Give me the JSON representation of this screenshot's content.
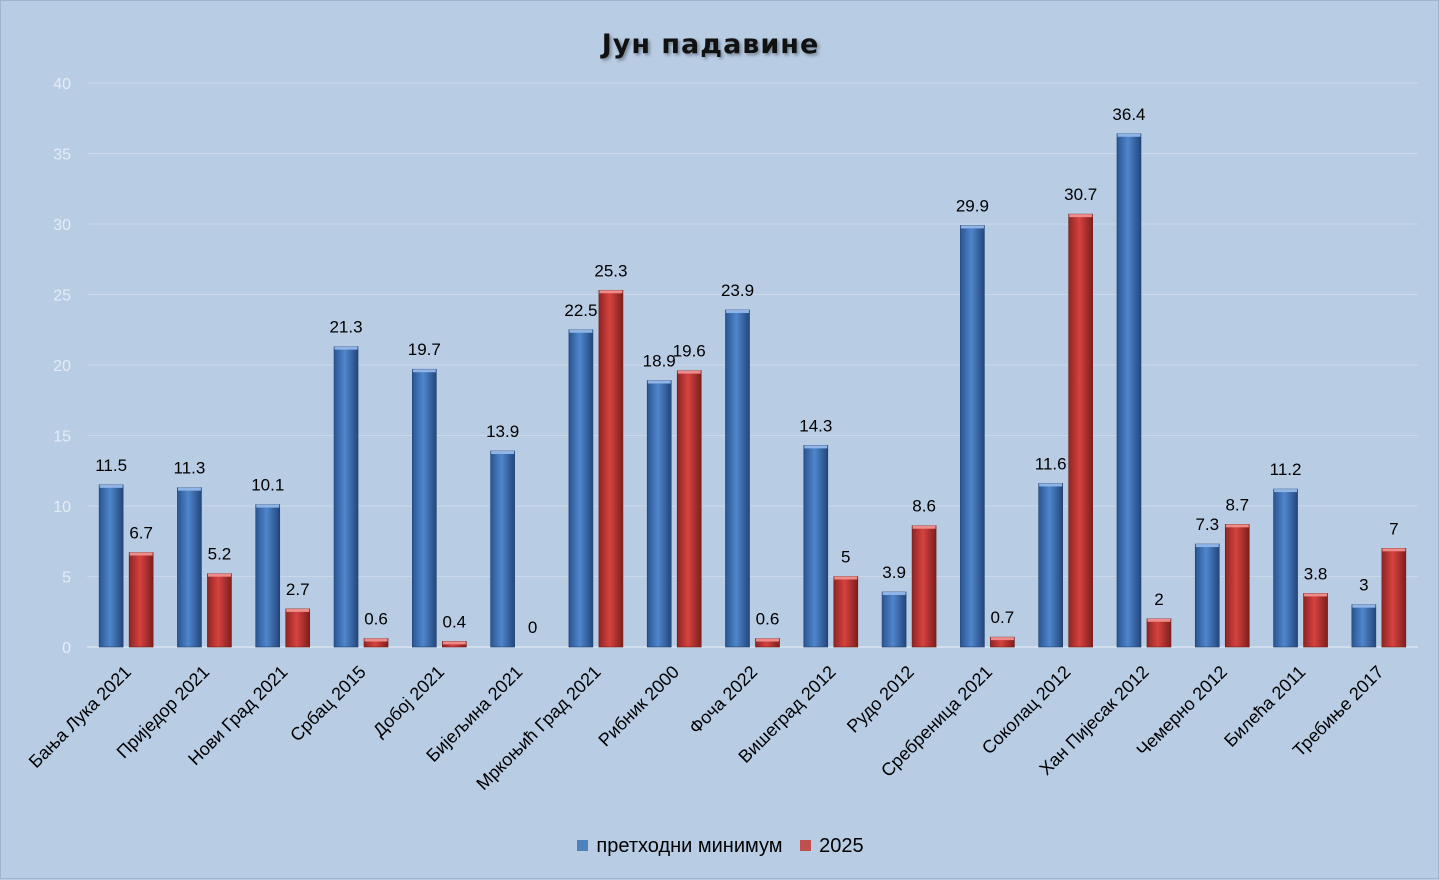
{
  "chart_data": {
    "type": "bar",
    "title": "Јун падавине",
    "xlabel": "",
    "ylabel": "",
    "ylim": [
      0,
      40
    ],
    "yticks": [
      0,
      5,
      10,
      15,
      20,
      25,
      30,
      35,
      40
    ],
    "grid": true,
    "legend_position": "bottom",
    "categories": [
      "Бања Лука 2021",
      "Приједор 2021",
      "Нови Град 2021",
      "Србац 2015",
      "Добој 2021",
      "Бијељина 2021",
      "Мркоњић Град 2021",
      "Рибник 2000",
      "Фоча 2022",
      "Вишеград 2012",
      "Рудо 2012",
      "Сребреница 2021",
      "Соколац 2012",
      "Хан Пијесак 2012",
      "Чемерно 2012",
      "Билећа 2011",
      "Требиње 2017"
    ],
    "series": [
      {
        "name": "претходни минимум",
        "color": "#4f81bd",
        "values": [
          11.5,
          11.3,
          10.1,
          21.3,
          19.7,
          13.9,
          22.5,
          18.9,
          23.9,
          14.3,
          3.9,
          29.9,
          11.6,
          36.4,
          7.3,
          11.2,
          3
        ]
      },
      {
        "name": "2025",
        "color": "#c0504d",
        "values": [
          6.7,
          5.2,
          2.7,
          0.6,
          0.4,
          0,
          25.3,
          19.6,
          0.6,
          5,
          8.6,
          0.7,
          30.7,
          2,
          8.7,
          3.8,
          7
        ]
      }
    ]
  }
}
